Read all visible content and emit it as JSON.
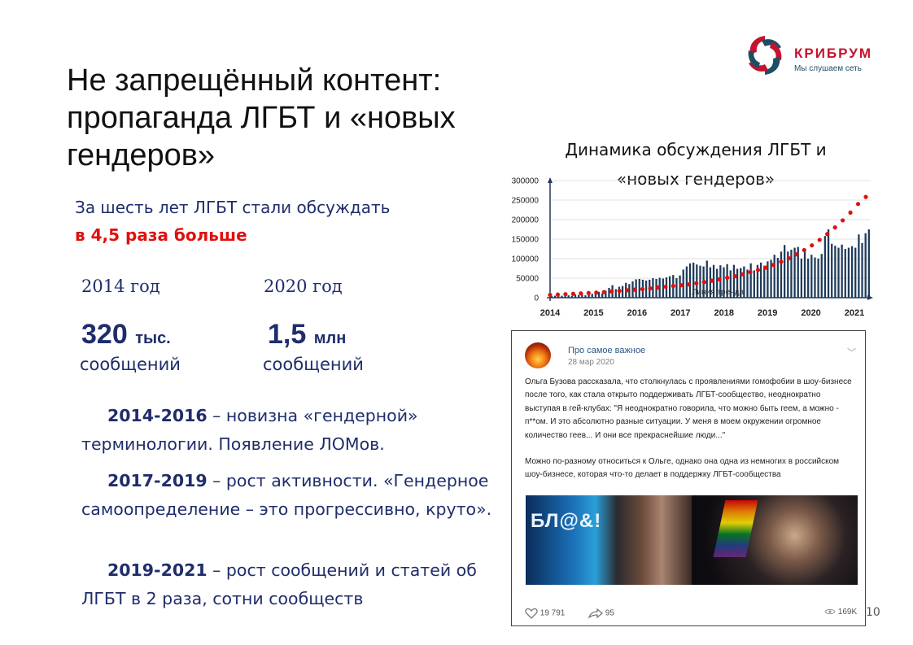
{
  "slide": {
    "title_lines": [
      "Не запрещённый контент:",
      "пропаганда ЛГБТ и «новых",
      "гендеров»"
    ],
    "page_number": "10"
  },
  "logo": {
    "name": "КРИБРУМ",
    "tagline": "Мы слушаем сеть",
    "colors": [
      "#c4122f",
      "#1d4f63"
    ]
  },
  "lead": {
    "line1": "За шесть лет ЛГБТ стали обсуждать",
    "line2": "в 4,5 раза больше",
    "accent_color": "#e01010"
  },
  "stats": [
    {
      "year": "2014 год",
      "value": "320",
      "unit": "тыс.",
      "label": "сообщений"
    },
    {
      "year": "2020 год",
      "value": "1,5",
      "unit": "млн",
      "label": "сообщений"
    }
  ],
  "periods": [
    {
      "years": "2014-2016",
      "text": " – новизна «гендерной» терминологии. Появление ЛОМов."
    },
    {
      "years": "2017-2019",
      "text": " – рост активности. «Гендерное самоопределение – это прогрессивно, круто»."
    },
    {
      "years": "2019-2021",
      "text": " – рост сообщений и статей об  ЛГБТ в 2 раза, сотни сообществ"
    }
  ],
  "chart_title_lines": [
    "Динамика обсуждения ЛГБТ и",
    "«новых гендеров»"
  ],
  "chart_data": {
    "type": "bar",
    "y_ticks": [
      "300000",
      "250000",
      "200000",
      "150000",
      "100000",
      "50000",
      "0"
    ],
    "x_ticks": [
      "2014",
      "2015",
      "2016",
      "2017",
      "2018",
      "2019",
      "2020",
      "2021"
    ],
    "ylim": [
      0,
      300000
    ],
    "bar_color": "#1f3b5a",
    "trend_color": "#e01010",
    "trend_label": "Линия тренда",
    "series": [
      {
        "values": [
          4000,
          5000,
          6000,
          5000,
          7000,
          6000,
          5000,
          8000,
          7000,
          9000,
          6000,
          8000,
          10000,
          12000,
          15000,
          11000,
          18000,
          25000,
          32000,
          22000,
          28000,
          30000,
          38000,
          35000,
          42000,
          47000,
          48000,
          46000,
          44000,
          46000,
          50000,
          48000,
          51000,
          49000,
          52000,
          55000,
          58000,
          50000,
          57000,
          72000,
          80000,
          88000,
          90000,
          85000,
          82000,
          80000,
          95000,
          78000,
          84000,
          74000,
          83000,
          78000,
          86000,
          70000,
          84000,
          74000,
          76000,
          80000,
          72000,
          88000,
          70000,
          84000,
          90000,
          82000,
          93000,
          97000,
          110000,
          102000,
          118000,
          135000,
          118000,
          123000,
          128000,
          130000,
          100000,
          120000,
          100000,
          110000,
          103000,
          100000,
          112000,
          158000,
          175000,
          138000,
          133000,
          128000,
          136000,
          125000,
          128000,
          132000,
          128000,
          162000,
          140000,
          165000,
          175000
        ]
      },
      {
        "name": "Линия тренда",
        "values": [
          7000,
          8000,
          9000,
          10000,
          11000,
          12000,
          13000,
          14500,
          16000,
          17500,
          19000,
          20500,
          22000,
          24000,
          26000,
          28000,
          30000,
          32000,
          34000,
          37000,
          40000,
          43500,
          47000,
          51000,
          55000,
          60000,
          65500,
          71000,
          77000,
          84000,
          92000,
          101000,
          111000,
          122000,
          134000,
          148000,
          163000,
          180000,
          198000,
          218000,
          240000,
          258000
        ]
      }
    ]
  },
  "post": {
    "author": "Про самое важное",
    "date": "28 мар 2020",
    "paragraph1": "Ольга Бузова рассказала, что столкнулась с проявлениями гомофобии в шоу-бизнесе после того, как стала открыто поддерживать ЛГБТ-сообщество, неоднократно выступая в гей-клубах: \"Я неоднократно говорила, что можно быть геем, а можно - п**ом. И это абсолютно разные ситуации. У меня в моем окружении огромное количество геев... И они все прекраснейшие люди...\"",
    "paragraph2": "Можно по-разному относиться к Ольге, однако она одна из немногих в российском шоу-бизнесе, которая что-то делает в поддержку ЛГБТ-сообщества",
    "photo_sign": "БЛ@&!",
    "likes": "19 791",
    "shares": "95",
    "views": "169K",
    "icons": [
      "heart-icon",
      "share-icon",
      "eye-icon",
      "chevron-down-icon"
    ]
  }
}
